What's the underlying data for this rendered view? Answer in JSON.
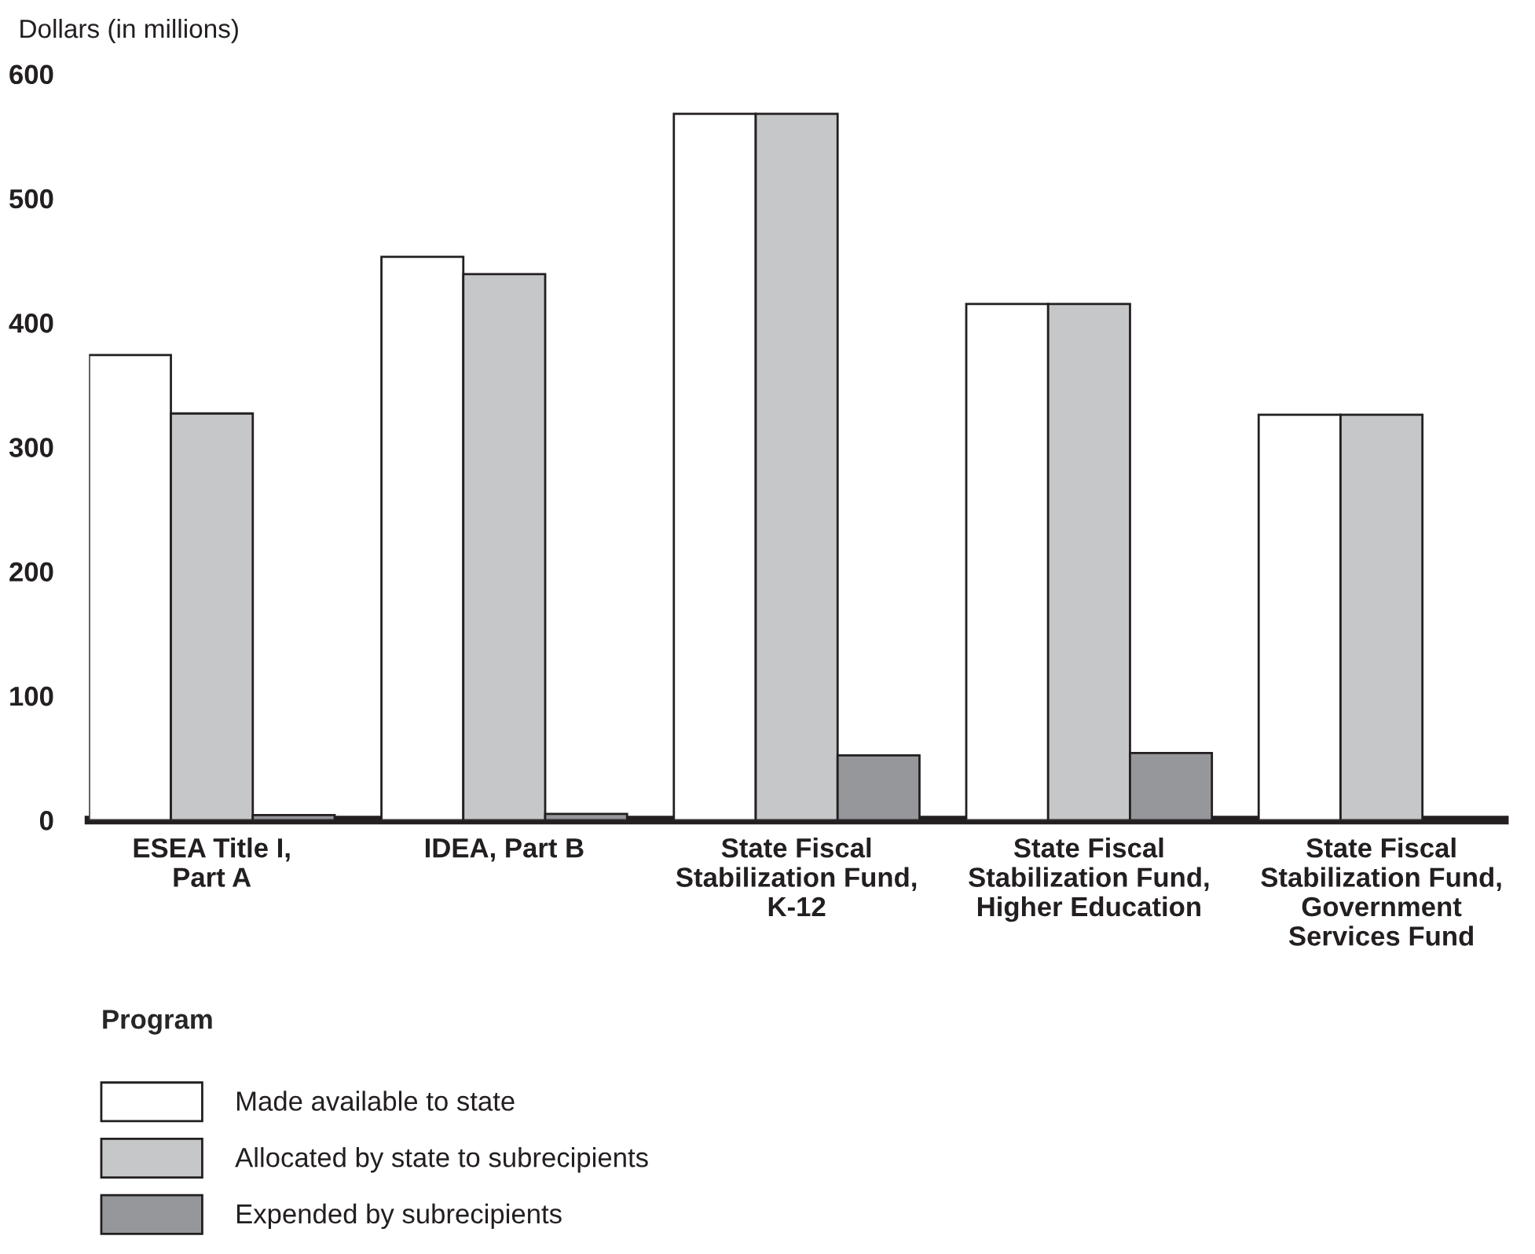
{
  "chart_data": {
    "type": "bar",
    "ylabel": "Dollars (in millions)",
    "legend_title": "Program",
    "categories": [
      "ESEA Title I,\nPart A",
      "IDEA, Part B",
      "State Fiscal\nStabilization Fund,\nK-12",
      "State Fiscal\nStabilization Fund,\nHigher Education",
      "State Fiscal\nStabilization Fund,\nGovernment\nServices Fund"
    ],
    "series": [
      {
        "name": "Made available to state",
        "color": "#ffffff",
        "values": [
          374,
          453,
          568,
          415,
          326
        ]
      },
      {
        "name": "Allocated by state to subrecipients",
        "color": "#c6c7c9",
        "values": [
          327,
          439,
          568,
          415,
          326
        ]
      },
      {
        "name": "Expended by subrecipients",
        "color": "#96979b",
        "values": [
          4,
          5,
          52,
          54,
          null
        ]
      }
    ],
    "ylim": [
      0,
      600
    ],
    "yticks": [
      0,
      100,
      200,
      300,
      400,
      500,
      600
    ],
    "grid": false,
    "legend": "bottom"
  }
}
